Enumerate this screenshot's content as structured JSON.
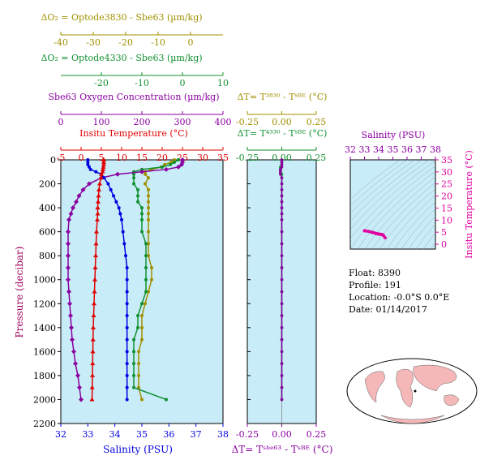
{
  "float_info": {
    "float": "Float:  8390",
    "profile": "Profile:  191",
    "location": "Location:  -0.0°S   0.0°E",
    "date": "Date:  01/14/2017"
  },
  "colors": {
    "temperature": "#e00000",
    "salinity": "#0000e0",
    "oxygen": "#8a00a0",
    "optode3830": "#a09000",
    "optode4330": "#109030",
    "ts": "#e000a0",
    "panel_bg": "#c8ecf8"
  },
  "chart_data": [
    {
      "type": "line",
      "name": "main-profile",
      "y_axis": {
        "label": "Pressure (decibar)",
        "range": [
          0,
          2200
        ],
        "ticks": [
          0,
          200,
          400,
          600,
          800,
          1000,
          1200,
          1400,
          1600,
          1800,
          2000,
          2200
        ],
        "inverted": true
      },
      "axes_top": [
        {
          "key": "do2_3830",
          "label": "ΔO₂ = Optode3830 - Sbe63    (µm/kg)",
          "range": [
            -40,
            10
          ],
          "ticks": [
            -40,
            -30,
            -20,
            -10,
            0
          ],
          "color": "#a09000"
        },
        {
          "key": "do2_4330",
          "label": "ΔO₂ = Optode4330 - Sbe63    (µm/kg)",
          "range": [
            -30,
            10
          ],
          "ticks": [
            -20,
            -10,
            0,
            10
          ],
          "color": "#109030"
        },
        {
          "key": "oxygen",
          "label": "Sbe63 Oxygen Concentration (µm/kg)",
          "range": [
            0,
            400
          ],
          "ticks": [
            0,
            100,
            200,
            300,
            400
          ],
          "color": "#8a00a0"
        },
        {
          "key": "temperature",
          "label": "Insitu Temperature (°C)",
          "range": [
            -5,
            35
          ],
          "ticks": [
            -5,
            0,
            5,
            10,
            15,
            20,
            25,
            30,
            35
          ],
          "color": "#e00000"
        }
      ],
      "axis_bottom": {
        "key": "salinity",
        "label": "Salinity (PSU)",
        "range": [
          32,
          38
        ],
        "ticks": [
          32,
          33,
          34,
          35,
          36,
          37,
          38
        ],
        "color": "#0000e0"
      },
      "pressure": [
        0,
        20,
        40,
        60,
        80,
        100,
        120,
        150,
        200,
        250,
        300,
        350,
        400,
        450,
        500,
        600,
        700,
        800,
        900,
        1000,
        1100,
        1200,
        1300,
        1400,
        1500,
        1600,
        1700,
        1800,
        1900,
        2000
      ],
      "temperature": [
        5.6,
        5.6,
        5.6,
        5.5,
        5.4,
        5.3,
        5.0,
        4.9,
        4.6,
        4.4,
        4.3,
        4.2,
        4.1,
        4.1,
        4.0,
        3.8,
        3.7,
        3.6,
        3.5,
        3.4,
        3.3,
        3.2,
        3.1,
        3.0,
        2.95,
        2.9,
        2.85,
        2.8,
        2.75,
        2.7
      ],
      "salinity": [
        33.0,
        33.0,
        33.0,
        33.05,
        33.1,
        33.3,
        33.5,
        33.6,
        33.75,
        33.85,
        33.95,
        34.05,
        34.15,
        34.2,
        34.25,
        34.3,
        34.35,
        34.4,
        34.45,
        34.45,
        34.45,
        34.45,
        34.45,
        34.45,
        34.45,
        34.45,
        34.45,
        34.45,
        34.45,
        34.45
      ],
      "oxygen": [
        300,
        300,
        298,
        290,
        260,
        200,
        140,
        100,
        70,
        55,
        45,
        38,
        30,
        25,
        20,
        18,
        18,
        18,
        18,
        18,
        20,
        22,
        24,
        26,
        28,
        32,
        36,
        42,
        46,
        50
      ],
      "do2_3830": [
        -5,
        -6,
        -8,
        -9,
        -12,
        -14,
        -14,
        -13,
        -14,
        -13,
        -13,
        -13,
        -13,
        -13,
        -13,
        -13,
        -13,
        -13,
        -12,
        -12,
        -13,
        -14,
        -15,
        -15,
        -15,
        -16,
        -16,
        -16,
        -16,
        -15
      ],
      "do2_4330": [
        -1,
        -2,
        -3,
        -5,
        -10,
        -12,
        -12,
        -12,
        -12,
        -11,
        -11,
        -11,
        -10,
        -10,
        -10,
        -10,
        -9,
        -9,
        -9,
        -9,
        -9,
        -10,
        -11,
        -11,
        -12,
        -12,
        -12,
        -12,
        -12,
        -4
      ]
    },
    {
      "type": "line",
      "name": "delta-t-profile",
      "axis_top_1": {
        "label": "ΔT= T³⁸³⁰ - Tˢᴮᴱ (°C)",
        "range": [
          -0.25,
          0.25
        ],
        "ticks": [
          "-0.25",
          "0.00",
          "0.25"
        ],
        "color": "#a09000"
      },
      "axis_top_2": {
        "label": "ΔT= T⁴³³⁰ - Tˢᴮᴱ (°C)",
        "range": [
          -0.25,
          0.25
        ],
        "ticks": [
          "-0.25",
          "0.00",
          "0.25"
        ],
        "color": "#109030"
      },
      "axis_bottom": {
        "label": "ΔT= Tˢᵇᵉ⁶³ - Tˢᴮᴱ (°C)",
        "range": [
          -0.25,
          0.25
        ],
        "ticks": [
          "-0.25",
          "0.00",
          "0.25"
        ],
        "color": "#8a00a0"
      },
      "pressure": [
        0,
        20,
        40,
        60,
        80,
        100,
        120,
        150,
        200,
        250,
        300,
        350,
        400,
        450,
        500,
        600,
        700,
        800,
        900,
        1000,
        1100,
        1200,
        1300,
        1400,
        1500,
        1600,
        1700,
        1800,
        1900,
        2000
      ],
      "dt_sbe63": [
        0.0,
        0.0,
        0.0,
        0.0,
        -0.01,
        -0.01,
        -0.01,
        0.0,
        0.0,
        0.0,
        0.0,
        0.0,
        0.0,
        0.0,
        0.0,
        0.0,
        0.0,
        0.0,
        0.0,
        0.0,
        0.0,
        0.0,
        0.0,
        0.0,
        0.0,
        0.0,
        0.0,
        0.0,
        0.0,
        0.0
      ],
      "dt_4330": [
        0.0,
        0.0,
        0.0,
        -0.01,
        -0.01,
        -0.01,
        0.0,
        0.0,
        0.0,
        0.0,
        0.0,
        0.0,
        0.0,
        0.0,
        0.0,
        0.0,
        0.0,
        0.0,
        0.0,
        0.0,
        0.0,
        0.0,
        0.0,
        0.0,
        0.0,
        0.0,
        0.0,
        0.0,
        0.0,
        0.0
      ]
    },
    {
      "type": "scatter",
      "name": "ts-diagram",
      "x_axis": {
        "label": "Salinity (PSU)",
        "range": [
          32,
          38
        ],
        "ticks": [
          32,
          33,
          34,
          35,
          36,
          37,
          38
        ],
        "color": "#8a00a0"
      },
      "y_axis": {
        "label": "Insitu Temperature (°C)",
        "range": [
          -2,
          35
        ],
        "ticks": [
          0,
          5,
          10,
          15,
          20,
          25,
          30,
          35
        ],
        "color": "#e000a0"
      },
      "salinity": [
        33.0,
        33.1,
        33.3,
        33.5,
        33.6,
        33.75,
        33.85,
        33.95,
        34.05,
        34.15,
        34.25,
        34.35,
        34.45
      ],
      "temperature": [
        5.6,
        5.5,
        5.3,
        5.0,
        4.9,
        4.6,
        4.4,
        4.3,
        4.2,
        4.1,
        4.0,
        3.6,
        2.7
      ]
    }
  ],
  "map": {
    "label": ""
  }
}
